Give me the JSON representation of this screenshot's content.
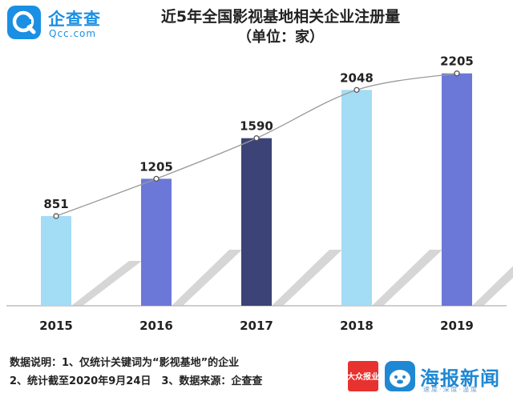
{
  "header": {
    "logo_cn": "企查查",
    "logo_en": "Qcc.com",
    "title": "近5年全国影视基地相关企业注册量",
    "subtitle": "（单位：家）"
  },
  "chart_data": {
    "type": "bar",
    "categories": [
      "2015",
      "2016",
      "2017",
      "2018",
      "2019"
    ],
    "values": [
      851,
      1205,
      1590,
      2048,
      2205
    ],
    "title": "近5年全国影视基地相关企业注册量",
    "subtitle": "（单位：家）",
    "xlabel": "",
    "ylabel": "",
    "ylim": [
      0,
      2400
    ],
    "grid": false,
    "bar_colors": [
      "#a3dcf5",
      "#6b78d8",
      "#3b4377",
      "#a3dcf5",
      "#6b78d8"
    ],
    "trend_line": true
  },
  "notes": {
    "line1": "数据说明：1、仅统计关键词为“影视基地”的企业",
    "line2": "2、统计截至2020年9月24日　3、数据来源：企查查"
  },
  "brand": {
    "badge_text": "大众报业",
    "name": "海报新闻",
    "slogan": "速度·深度·温度"
  }
}
